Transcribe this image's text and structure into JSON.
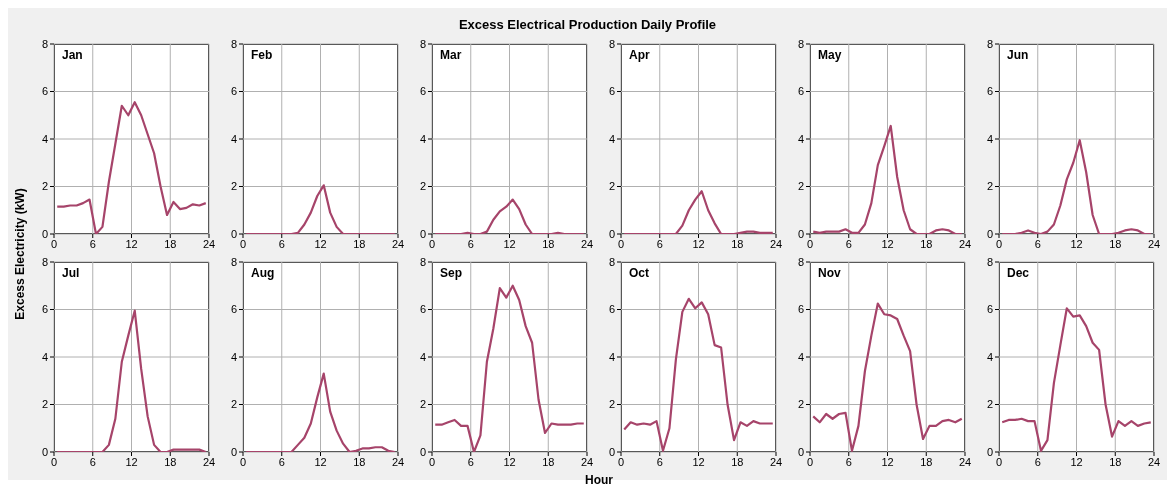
{
  "chart_data": [
    {
      "type": "line",
      "title": "Jan",
      "annotations": [
        "Excess Electrical Production Daily Profile"
      ],
      "ylabel": "Excess Electricity (kW)",
      "color": "#a6446a",
      "grid": true,
      "xlim": [
        0,
        24
      ],
      "xticks": [
        0,
        6,
        12,
        18,
        24
      ],
      "ylim": [
        0,
        8
      ],
      "yticks": [
        0,
        2,
        4,
        6,
        8
      ],
      "x": [
        0.5,
        1.5,
        2.5,
        3.5,
        4.5,
        5.5,
        6.5,
        7.5,
        8.5,
        9.5,
        10.5,
        11.5,
        12.5,
        13.5,
        14.5,
        15.5,
        16.5,
        17.5,
        18.5,
        19.5,
        20.5,
        21.5,
        22.5,
        23.5
      ],
      "values": [
        1.15,
        1.15,
        1.2,
        1.2,
        1.3,
        1.45,
        0,
        0.3,
        2.2,
        3.8,
        5.4,
        5.0,
        5.55,
        5.0,
        4.2,
        3.4,
        2.0,
        0.8,
        1.35,
        1.05,
        1.1,
        1.25,
        1.2,
        1.3
      ]
    },
    {
      "type": "line",
      "title": "Feb",
      "color": "#a6446a",
      "grid": true,
      "xlim": [
        0,
        24
      ],
      "xticks": [
        0,
        6,
        12,
        18,
        24
      ],
      "ylim": [
        0,
        8
      ],
      "yticks": [
        0,
        2,
        4,
        6,
        8
      ],
      "x": [
        0.5,
        1.5,
        2.5,
        3.5,
        4.5,
        5.5,
        6.5,
        7.5,
        8.5,
        9.5,
        10.5,
        11.5,
        12.5,
        13.5,
        14.5,
        15.5,
        16.5,
        17.5,
        18.5,
        19.5,
        20.5,
        21.5,
        22.5,
        23.5
      ],
      "values": [
        0,
        0,
        0,
        0,
        0,
        0,
        0,
        0,
        0.05,
        0.4,
        0.9,
        1.6,
        2.05,
        0.9,
        0.3,
        0,
        0,
        0,
        0,
        0,
        0,
        0,
        0,
        0
      ]
    },
    {
      "type": "line",
      "title": "Mar",
      "color": "#a6446a",
      "grid": true,
      "xlim": [
        0,
        24
      ],
      "xticks": [
        0,
        6,
        12,
        18,
        24
      ],
      "ylim": [
        0,
        8
      ],
      "yticks": [
        0,
        2,
        4,
        6,
        8
      ],
      "x": [
        0.5,
        1.5,
        2.5,
        3.5,
        4.5,
        5.5,
        6.5,
        7.5,
        8.5,
        9.5,
        10.5,
        11.5,
        12.5,
        13.5,
        14.5,
        15.5,
        16.5,
        17.5,
        18.5,
        19.5,
        20.5,
        21.5,
        22.5,
        23.5
      ],
      "values": [
        0,
        0,
        0,
        0,
        0,
        0.05,
        0,
        0,
        0.1,
        0.6,
        0.95,
        1.15,
        1.45,
        1.05,
        0.4,
        0,
        0,
        0,
        0,
        0.05,
        0,
        0,
        0,
        0
      ]
    },
    {
      "type": "line",
      "title": "Apr",
      "color": "#a6446a",
      "grid": true,
      "xlim": [
        0,
        24
      ],
      "xticks": [
        0,
        6,
        12,
        18,
        24
      ],
      "ylim": [
        0,
        8
      ],
      "yticks": [
        0,
        2,
        4,
        6,
        8
      ],
      "x": [
        0.5,
        1.5,
        2.5,
        3.5,
        4.5,
        5.5,
        6.5,
        7.5,
        8.5,
        9.5,
        10.5,
        11.5,
        12.5,
        13.5,
        14.5,
        15.5,
        16.5,
        17.5,
        18.5,
        19.5,
        20.5,
        21.5,
        22.5,
        23.5
      ],
      "values": [
        0,
        0,
        0,
        0,
        0,
        0,
        0,
        0,
        0,
        0.35,
        1.0,
        1.45,
        1.8,
        1.0,
        0.45,
        0,
        0,
        0,
        0.05,
        0.1,
        0.1,
        0.05,
        0.05,
        0.05
      ]
    },
    {
      "type": "line",
      "title": "May",
      "color": "#a6446a",
      "grid": true,
      "xlim": [
        0,
        24
      ],
      "xticks": [
        0,
        6,
        12,
        18,
        24
      ],
      "ylim": [
        0,
        8
      ],
      "yticks": [
        0,
        2,
        4,
        6,
        8
      ],
      "x": [
        0.5,
        1.5,
        2.5,
        3.5,
        4.5,
        5.5,
        6.5,
        7.5,
        8.5,
        9.5,
        10.5,
        11.5,
        12.5,
        13.5,
        14.5,
        15.5,
        16.5,
        17.5,
        18.5,
        19.5,
        20.5,
        21.5,
        22.5,
        23.5
      ],
      "values": [
        0.1,
        0.05,
        0.1,
        0.1,
        0.1,
        0.2,
        0.05,
        0.05,
        0.4,
        1.3,
        2.9,
        3.7,
        4.55,
        2.4,
        1.0,
        0.2,
        0,
        0,
        0,
        0.15,
        0.2,
        0.15,
        0,
        0
      ]
    },
    {
      "type": "line",
      "title": "Jun",
      "color": "#a6446a",
      "grid": true,
      "xlim": [
        0,
        24
      ],
      "xticks": [
        0,
        6,
        12,
        18,
        24
      ],
      "ylim": [
        0,
        8
      ],
      "yticks": [
        0,
        2,
        4,
        6,
        8
      ],
      "x": [
        0.5,
        1.5,
        2.5,
        3.5,
        4.5,
        5.5,
        6.5,
        7.5,
        8.5,
        9.5,
        10.5,
        11.5,
        12.5,
        13.5,
        14.5,
        15.5,
        16.5,
        17.5,
        18.5,
        19.5,
        20.5,
        21.5,
        22.5,
        23.5
      ],
      "values": [
        0,
        0,
        0,
        0.05,
        0.15,
        0.05,
        0,
        0.1,
        0.4,
        1.2,
        2.3,
        3.0,
        3.95,
        2.6,
        0.8,
        0,
        0,
        0,
        0.05,
        0.15,
        0.2,
        0.15,
        0,
        0
      ]
    },
    {
      "type": "line",
      "title": "Jul",
      "color": "#a6446a",
      "grid": true,
      "xlim": [
        0,
        24
      ],
      "xticks": [
        0,
        6,
        12,
        18,
        24
      ],
      "ylim": [
        0,
        8
      ],
      "yticks": [
        0,
        2,
        4,
        6,
        8
      ],
      "x": [
        0.5,
        1.5,
        2.5,
        3.5,
        4.5,
        5.5,
        6.5,
        7.5,
        8.5,
        9.5,
        10.5,
        11.5,
        12.5,
        13.5,
        14.5,
        15.5,
        16.5,
        17.5,
        18.5,
        19.5,
        20.5,
        21.5,
        22.5,
        23.5
      ],
      "values": [
        0,
        0,
        0,
        0,
        0,
        0,
        0,
        0,
        0.3,
        1.4,
        3.8,
        4.9,
        5.95,
        3.5,
        1.5,
        0.3,
        0,
        0,
        0.1,
        0.1,
        0.1,
        0.1,
        0.1,
        0
      ]
    },
    {
      "type": "line",
      "title": "Aug",
      "color": "#a6446a",
      "grid": true,
      "xlim": [
        0,
        24
      ],
      "xticks": [
        0,
        6,
        12,
        18,
        24
      ],
      "ylim": [
        0,
        8
      ],
      "yticks": [
        0,
        2,
        4,
        6,
        8
      ],
      "x": [
        0.5,
        1.5,
        2.5,
        3.5,
        4.5,
        5.5,
        6.5,
        7.5,
        8.5,
        9.5,
        10.5,
        11.5,
        12.5,
        13.5,
        14.5,
        15.5,
        16.5,
        17.5,
        18.5,
        19.5,
        20.5,
        21.5,
        22.5,
        23.5
      ],
      "values": [
        0,
        0,
        0,
        0,
        0,
        0,
        0,
        0,
        0.3,
        0.6,
        1.2,
        2.3,
        3.3,
        1.7,
        0.9,
        0.35,
        0,
        0.05,
        0.15,
        0.15,
        0.2,
        0.2,
        0.05,
        0
      ]
    },
    {
      "type": "line",
      "title": "Sep",
      "color": "#a6446a",
      "grid": true,
      "xlim": [
        0,
        24
      ],
      "xticks": [
        0,
        6,
        12,
        18,
        24
      ],
      "ylim": [
        0,
        8
      ],
      "yticks": [
        0,
        2,
        4,
        6,
        8
      ],
      "x": [
        0.5,
        1.5,
        2.5,
        3.5,
        4.5,
        5.5,
        6.5,
        7.5,
        8.5,
        9.5,
        10.5,
        11.5,
        12.5,
        13.5,
        14.5,
        15.5,
        16.5,
        17.5,
        18.5,
        19.5,
        20.5,
        21.5,
        22.5,
        23.5
      ],
      "values": [
        1.15,
        1.15,
        1.25,
        1.35,
        1.1,
        1.1,
        0,
        0.7,
        3.8,
        5.2,
        6.9,
        6.5,
        7.0,
        6.4,
        5.3,
        4.6,
        2.2,
        0.8,
        1.2,
        1.15,
        1.15,
        1.15,
        1.2,
        1.2
      ]
    },
    {
      "type": "line",
      "title": "Oct",
      "xlabel": "Hour",
      "color": "#a6446a",
      "grid": true,
      "xlim": [
        0,
        24
      ],
      "xticks": [
        0,
        6,
        12,
        18,
        24
      ],
      "ylim": [
        0,
        8
      ],
      "yticks": [
        0,
        2,
        4,
        6,
        8
      ],
      "x": [
        0.5,
        1.5,
        2.5,
        3.5,
        4.5,
        5.5,
        6.5,
        7.5,
        8.5,
        9.5,
        10.5,
        11.5,
        12.5,
        13.5,
        14.5,
        15.5,
        16.5,
        17.5,
        18.5,
        19.5,
        20.5,
        21.5,
        22.5,
        23.5
      ],
      "values": [
        0.95,
        1.25,
        1.15,
        1.2,
        1.15,
        1.3,
        0.05,
        1.0,
        3.9,
        5.9,
        6.45,
        6.05,
        6.3,
        5.8,
        4.5,
        4.4,
        2.0,
        0.5,
        1.25,
        1.1,
        1.3,
        1.2,
        1.2,
        1.2
      ]
    },
    {
      "type": "line",
      "title": "Nov",
      "color": "#a6446a",
      "grid": true,
      "xlim": [
        0,
        24
      ],
      "xticks": [
        0,
        6,
        12,
        18,
        24
      ],
      "ylim": [
        0,
        8
      ],
      "yticks": [
        0,
        2,
        4,
        6,
        8
      ],
      "x": [
        0.5,
        1.5,
        2.5,
        3.5,
        4.5,
        5.5,
        6.5,
        7.5,
        8.5,
        9.5,
        10.5,
        11.5,
        12.5,
        13.5,
        14.5,
        15.5,
        16.5,
        17.5,
        18.5,
        19.5,
        20.5,
        21.5,
        22.5,
        23.5
      ],
      "values": [
        1.5,
        1.25,
        1.6,
        1.4,
        1.6,
        1.65,
        0.05,
        1.1,
        3.4,
        4.9,
        6.25,
        5.8,
        5.75,
        5.6,
        4.9,
        4.25,
        2.0,
        0.55,
        1.1,
        1.1,
        1.3,
        1.35,
        1.25,
        1.4
      ]
    },
    {
      "type": "line",
      "title": "Dec",
      "color": "#a6446a",
      "grid": true,
      "xlim": [
        0,
        24
      ],
      "xticks": [
        0,
        6,
        12,
        18,
        24
      ],
      "ylim": [
        0,
        8
      ],
      "yticks": [
        0,
        2,
        4,
        6,
        8
      ],
      "x": [
        0.5,
        1.5,
        2.5,
        3.5,
        4.5,
        5.5,
        6.5,
        7.5,
        8.5,
        9.5,
        10.5,
        11.5,
        12.5,
        13.5,
        14.5,
        15.5,
        16.5,
        17.5,
        18.5,
        19.5,
        20.5,
        21.5,
        22.5,
        23.5
      ],
      "values": [
        1.25,
        1.35,
        1.35,
        1.4,
        1.3,
        1.3,
        0.05,
        0.5,
        2.9,
        4.5,
        6.05,
        5.7,
        5.75,
        5.3,
        4.6,
        4.3,
        2.0,
        0.65,
        1.3,
        1.1,
        1.3,
        1.1,
        1.2,
        1.25
      ]
    }
  ]
}
